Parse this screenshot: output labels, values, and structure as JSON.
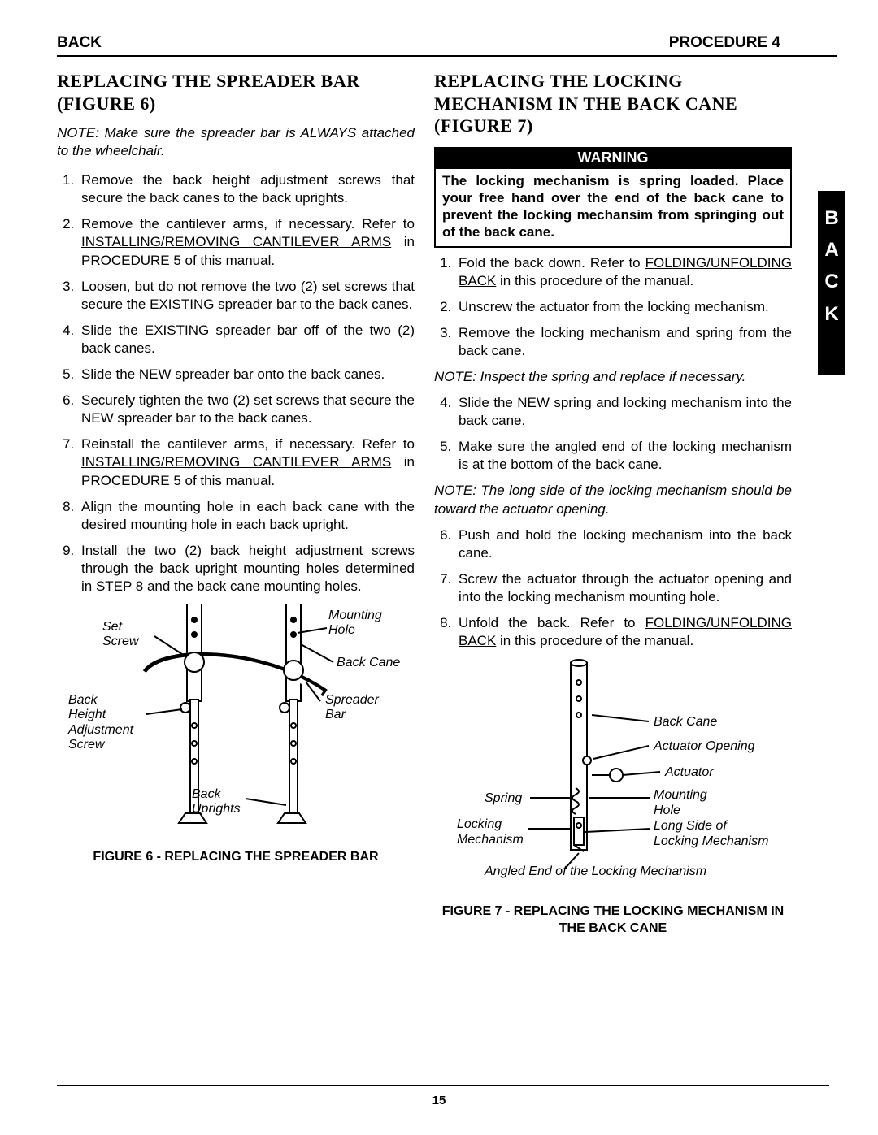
{
  "header": {
    "left": "BACK",
    "right": "PROCEDURE 4"
  },
  "sideTab": [
    "B",
    "A",
    "C",
    "K"
  ],
  "left": {
    "title": "REPLACING THE SPREADER BAR (FIGURE 6)",
    "note": "NOTE: Make sure the spreader bar is ALWAYS attached to the wheelchair.",
    "steps": [
      "Remove the back height adjustment screws that secure the back canes to the back uprights.",
      "Remove the cantilever arms, if necessary. Refer to <span class=\"ul\">INSTALLING/REMOVING CANTILEVER ARMS</span> in PROCEDURE 5 of this manual.",
      "Loosen, but do not remove the two (2) set screws that secure the EXISTING spreader bar to the back canes.",
      "Slide the EXISTING spreader bar off of the two (2) back canes.",
      "Slide the NEW spreader bar onto the back canes.",
      "Securely tighten the two (2) set screws that secure the NEW spreader bar to the back canes.",
      "Reinstall the cantilever arms, if necessary. Refer to <span class=\"ul\">INSTALLING/REMOVING CANTILEVER ARMS</span> in PROCEDURE 5 of this manual.",
      "Align the mounting hole in each back cane with the desired mounting hole in each back upright.",
      "Install the two (2) back height adjustment screws through the back upright mounting holes determined in STEP 8 and the back cane mounting holes."
    ],
    "figCaption": "FIGURE 6 - REPLACING THE SPREADER BAR",
    "labels": {
      "set": "Set\nScrew",
      "mount": "Mounting\nHole",
      "backCane": "Back Cane",
      "backHeight": "Back\nHeight\nAdjustment\nScrew",
      "spreader": "Spreader\nBar",
      "backUprights": "Back\nUprights"
    }
  },
  "right": {
    "title": "REPLACING THE LOCKING MECHANISM IN THE BACK CANE (FIGURE 7)",
    "warningTitle": "WARNING",
    "warningBody": "The locking mechanism is spring loaded. Place your free hand over the end of the back cane to prevent the locking mechansim from springing out of the back cane.",
    "stepsA": [
      "Fold the back down. Refer to <span class=\"ul\">FOLDING/UNFOLDING BACK</span> in this procedure of the manual.",
      "Unscrew the actuator from the locking mechanism.",
      "Remove the locking mechanism and spring from the back cane."
    ],
    "note1": "NOTE: Inspect the spring and replace if necessary.",
    "stepsB": [
      "Slide the NEW spring and locking mechanism into the back cane.",
      "Make sure the angled end of the locking mechanism is at the bottom of the back cane."
    ],
    "note2": "NOTE: The long side of the locking mechanism should be toward the actuator opening.",
    "stepsC": [
      "Push and hold the locking mechanism into the back cane.",
      "Screw the actuator through the actuator opening and into the locking mechanism mounting hole.",
      "Unfold the back. Refer to <span class=\"ul\">FOLDING/UNFOLDING BACK</span> in this procedure of the manual."
    ],
    "figCaption": "FIGURE 7 - REPLACING THE LOCKING MECHANISM IN THE BACK CANE",
    "labels": {
      "backCane": "Back Cane",
      "actOpen": "Actuator Opening",
      "actuator": "Actuator",
      "spring": "Spring",
      "mounting": "Mounting\nHole",
      "locking": "Locking\nMechanism",
      "longSide": "Long Side of\nLocking Mechanism",
      "angled": "Angled End of the Locking Mechanism"
    }
  },
  "pageNum": "15"
}
